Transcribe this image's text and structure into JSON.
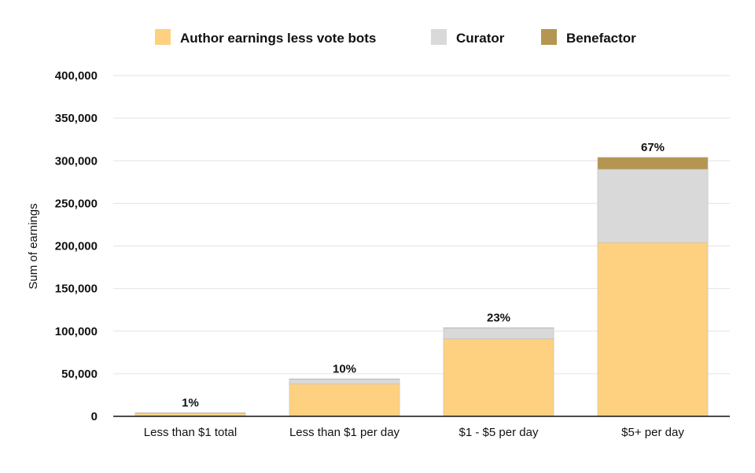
{
  "chart_data": {
    "type": "bar",
    "stacked": true,
    "title": "",
    "xlabel": "",
    "ylabel": "Sum of earnings",
    "ylim": [
      0,
      400000
    ],
    "yticks": [
      0,
      50000,
      100000,
      150000,
      200000,
      250000,
      300000,
      350000,
      400000
    ],
    "ytick_labels": [
      "0",
      "50,000",
      "100,000",
      "150,000",
      "200,000",
      "250,000",
      "300,000",
      "350,000",
      "400,000"
    ],
    "grid": true,
    "legend_position": "top-center",
    "categories": [
      "Less than $1 total",
      "Less than $1 per day",
      "$1 - $5 per day",
      "$5+ per day"
    ],
    "series": [
      {
        "name": "Author earnings less vote bots",
        "color": "#fdd17f",
        "values": [
          3500,
          38000,
          91000,
          204000
        ]
      },
      {
        "name": "Curator",
        "color": "#d9d9d9",
        "values": [
          600,
          5500,
          12500,
          86000
        ]
      },
      {
        "name": "Benefactor",
        "color": "#b59552",
        "values": [
          100,
          500,
          500,
          14000
        ]
      }
    ],
    "annotations": [
      "1%",
      "10%",
      "23%",
      "67%"
    ]
  }
}
